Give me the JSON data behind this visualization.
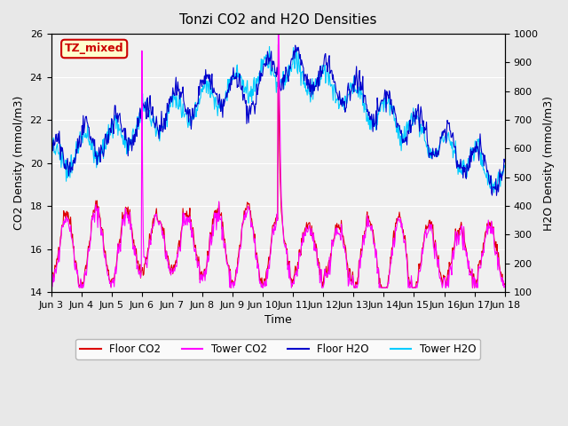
{
  "title": "Tonzi CO2 and H2O Densities",
  "xlabel": "Time",
  "ylabel_left": "CO2 Density (mmol/m3)",
  "ylabel_right": "H2O Density (mmol/m3)",
  "ylim_left": [
    14,
    26
  ],
  "ylim_right": [
    100,
    1000
  ],
  "yticks_left": [
    14,
    16,
    18,
    20,
    22,
    24,
    26
  ],
  "yticks_right": [
    100,
    200,
    300,
    400,
    500,
    600,
    700,
    800,
    900,
    1000
  ],
  "xtick_positions": [
    0,
    1,
    2,
    3,
    4,
    5,
    6,
    7,
    8,
    9,
    10,
    11,
    12,
    13,
    14,
    15
  ],
  "xtick_labels": [
    "Jun 3",
    "Jun 4",
    "Jun 5",
    "Jun 6",
    "Jun 7",
    "Jun 8",
    "Jun 9",
    "Jun 10",
    "Jun 11",
    "Jun 12",
    "Jun 13",
    "Jun 14",
    "Jun 15",
    "Jun 16",
    "Jun 17",
    "Jun 18"
  ],
  "annotation_text": "TZ_mixed",
  "annotation_color": "#cc0000",
  "annotation_bg": "#ffffcc",
  "annotation_border": "#cc0000",
  "colors": {
    "floor_co2": "#dd0000",
    "tower_co2": "#ff00ff",
    "floor_h2o": "#0000cc",
    "tower_h2o": "#00ccff"
  },
  "legend_labels": [
    "Floor CO2",
    "Tower CO2",
    "Floor H2O",
    "Tower H2O"
  ],
  "bg_color": "#e8e8e8",
  "plot_bg": "#f0f0f0",
  "n_days": 15,
  "samples_per_day": 48
}
